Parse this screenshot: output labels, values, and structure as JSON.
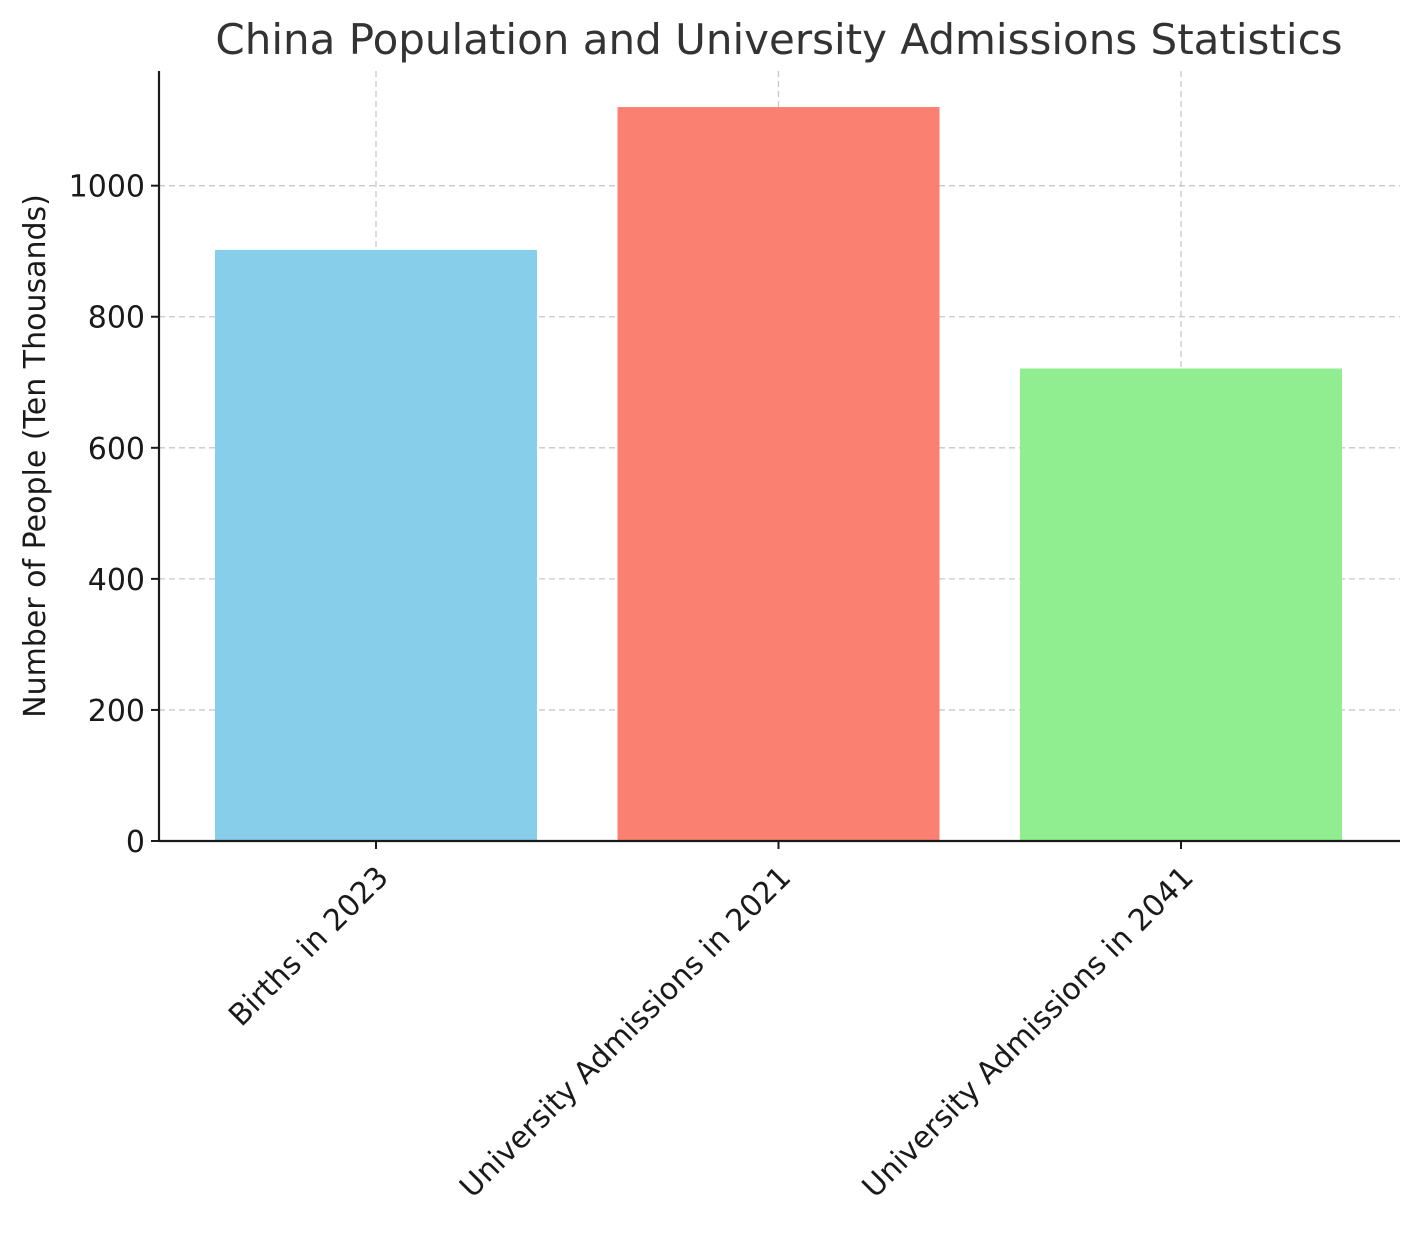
{
  "chart_data": {
    "type": "bar",
    "title": "China Population and University Admissions Statistics",
    "xlabel": "",
    "ylabel": "Number of People (Ten Thousands)",
    "categories": [
      "Births in 2023",
      "University Admissions in 2021",
      "University Admissions in 2041"
    ],
    "values": [
      902,
      1120,
      721
    ],
    "colors": [
      "#87ceeb",
      "#fa8072",
      "#90ee90"
    ],
    "ylim": [
      0,
      1175
    ],
    "yticks": [
      0,
      200,
      400,
      600,
      800,
      1000
    ],
    "grid": true,
    "legend": "none"
  }
}
